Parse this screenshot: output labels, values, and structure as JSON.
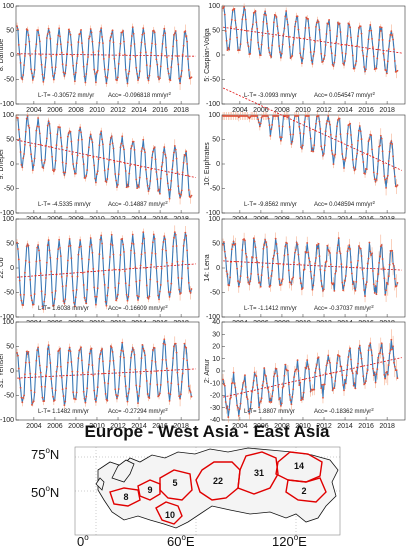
{
  "chart_data": [
    {
      "type": "line",
      "basin_label": "8: Danube",
      "ylim": [
        -100,
        100
      ],
      "yticks": [
        -100,
        -50,
        0,
        50,
        100
      ],
      "xticks": [
        "2004",
        "2006",
        "2008",
        "2010",
        "2012",
        "2014",
        "2016",
        "2018"
      ],
      "trend_text": "L-T= -0.30572 mm/yr",
      "acc_text": "Acc= -0.096818 mm/yr",
      "series": [
        {
          "values": {
            "mean": 0,
            "amp": 50,
            "trend": -0.3,
            "noise": 8
          }
        }
      ]
    },
    {
      "type": "line",
      "basin_label": "5: Caspian-Volga",
      "ylim": [
        -100,
        100
      ],
      "yticks": [
        -100,
        -50,
        0,
        50,
        100
      ],
      "xticks": [
        "2004",
        "2006",
        "2008",
        "2010",
        "2012",
        "2014",
        "2016",
        "2018"
      ],
      "trend_text": "L-T= -3.0993 mm/yr",
      "acc_text": "Acc= 0.054547 mm/yr",
      "series": [
        {
          "values": {
            "mean": 30,
            "amp": 45,
            "trend": -3.1,
            "noise": 8
          }
        }
      ]
    },
    {
      "type": "line",
      "basin_label": "9: Dneper",
      "ylim": [
        -100,
        100
      ],
      "yticks": [
        -100,
        -50,
        0,
        50,
        100
      ],
      "xticks": [
        "2004",
        "2006",
        "2008",
        "2010",
        "2012",
        "2014",
        "2016",
        "2018"
      ],
      "trend_text": "L-T= -4.5335 mm/yr",
      "acc_text": "Acc= -0.14887 mm/yr",
      "series": [
        {
          "values": {
            "mean": 10,
            "amp": 48,
            "trend": -4.5,
            "noise": 8
          }
        }
      ]
    },
    {
      "type": "line",
      "basin_label": "10: Euphrates",
      "ylim": [
        -100,
        100
      ],
      "yticks": [
        -100,
        -50,
        0,
        50,
        100
      ],
      "xticks": [
        "2004",
        "2006",
        "2008",
        "2010",
        "2012",
        "2014",
        "2016",
        "2018"
      ],
      "trend_text": "L-T= -9.8562 mm/yr",
      "acc_text": "Acc= 0.048594 mm/yr",
      "series": [
        {
          "values": {
            "mean": 70,
            "amp": 45,
            "trend": -9.9,
            "noise": 9
          }
        }
      ]
    },
    {
      "type": "line",
      "basin_label": "22: Ob",
      "ylim": [
        -100,
        100
      ],
      "yticks": [
        -100,
        -50,
        0,
        50,
        100
      ],
      "xticks": [
        "2004",
        "2006",
        "2008",
        "2010",
        "2012",
        "2014",
        "2016",
        "2018"
      ],
      "trend_text": "L-T= 1.6038 mm/yr",
      "acc_text": "Acc= -0.16609 mm/yr",
      "series": [
        {
          "values": {
            "mean": -5,
            "amp": 65,
            "trend": 1.6,
            "noise": 8
          }
        }
      ]
    },
    {
      "type": "line",
      "basin_label": "14: Lena",
      "ylim": [
        -100,
        100
      ],
      "yticks": [
        -100,
        -50,
        0,
        50,
        100
      ],
      "xticks": [
        "2004",
        "2006",
        "2008",
        "2010",
        "2012",
        "2014",
        "2016",
        "2018"
      ],
      "trend_text": "L-T= -1.1412 mm/yr",
      "acc_text": "Acc= -0.37037 mm/yr",
      "series": [
        {
          "values": {
            "mean": 5,
            "amp": 45,
            "trend": -1.1,
            "noise": 14
          }
        }
      ]
    },
    {
      "type": "line",
      "basin_label": "31: Yenisei",
      "ylim": [
        -100,
        100
      ],
      "yticks": [
        -100,
        -50,
        0,
        50,
        100
      ],
      "xticks": [
        "2004",
        "2006",
        "2008",
        "2010",
        "2012",
        "2014",
        "2016",
        "2018"
      ],
      "trend_text": "L-T= 1.1482 mm/yr",
      "acc_text": "Acc= -0.27294 mm/yr",
      "series": [
        {
          "values": {
            "mean": -5,
            "amp": 55,
            "trend": 1.1,
            "noise": 9
          }
        }
      ]
    },
    {
      "type": "line",
      "basin_label": "2: Amur",
      "ylim": [
        -40,
        40
      ],
      "yticks": [
        -40,
        -30,
        -20,
        -10,
        0,
        10,
        20,
        30,
        40
      ],
      "xticks": [
        "2004",
        "2006",
        "2008",
        "2010",
        "2012",
        "2014",
        "2016",
        "2018"
      ],
      "trend_text": "L-T= 1.8807 mm/yr",
      "acc_text": "Acc= -0.18362 mm/yr",
      "series": [
        {
          "values": {
            "mean": -5,
            "amp": 14,
            "trend": 1.9,
            "noise": 5
          }
        }
      ]
    }
  ],
  "map": {
    "title": "Europe - West Asia - East Asia",
    "lat_labels": [
      "75",
      "50"
    ],
    "lon_labels": [
      "0",
      "60",
      "120"
    ],
    "degree_symbol": "o",
    "lat_suffix": "N",
    "lon_suffix": "E",
    "region_numbers": [
      "22",
      "31",
      "14",
      "2",
      "5",
      "9",
      "8",
      "10"
    ],
    "region_color": "#e00000"
  },
  "colors": {
    "data_line": "#3a78b5",
    "data_points": "#e0533a",
    "trend": "#e01010",
    "error_bars": "#f4a07a"
  }
}
